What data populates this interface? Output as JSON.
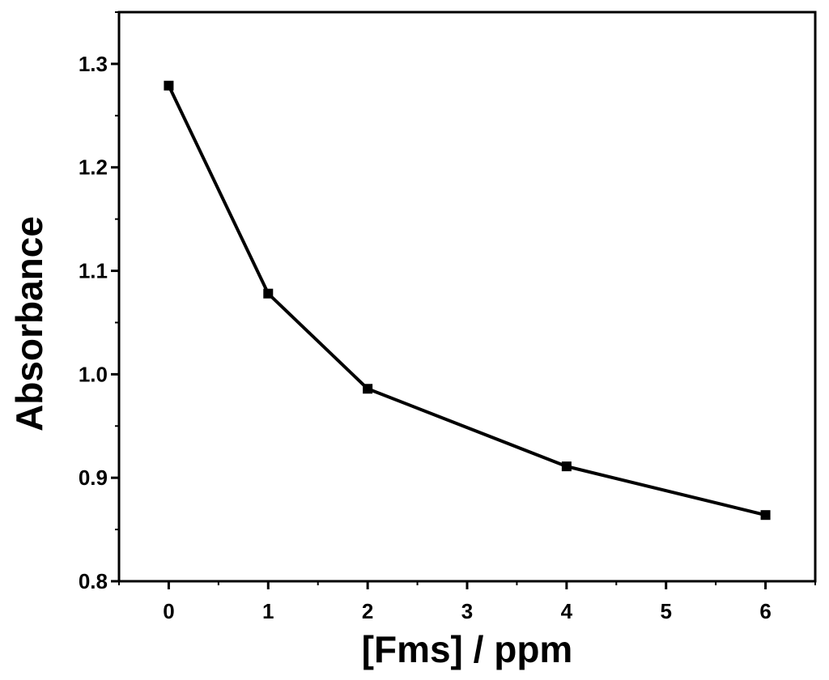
{
  "chart_data": {
    "type": "line",
    "title": "",
    "xlabel": "[Fms] / ppm",
    "ylabel": "Absorbance",
    "xlim": [
      -0.5,
      6.5
    ],
    "ylim": [
      0.8,
      1.35
    ],
    "x_ticks": [
      0,
      1,
      2,
      3,
      4,
      5,
      6
    ],
    "x_tick_labels": [
      "0",
      "1",
      "2",
      "3",
      "4",
      "5",
      "6"
    ],
    "y_ticks": [
      0.8,
      0.9,
      1.0,
      1.1,
      1.2,
      1.3
    ],
    "y_tick_labels": [
      "0.8",
      "0.9",
      "1.0",
      "1.1",
      "1.2",
      "1.3"
    ],
    "grid": false,
    "legend": "none",
    "marker": "square",
    "series": [
      {
        "color": "#000000",
        "x": [
          0,
          1,
          2,
          4,
          6
        ],
        "y": [
          1.279,
          1.078,
          0.986,
          0.911,
          0.864
        ]
      }
    ]
  }
}
